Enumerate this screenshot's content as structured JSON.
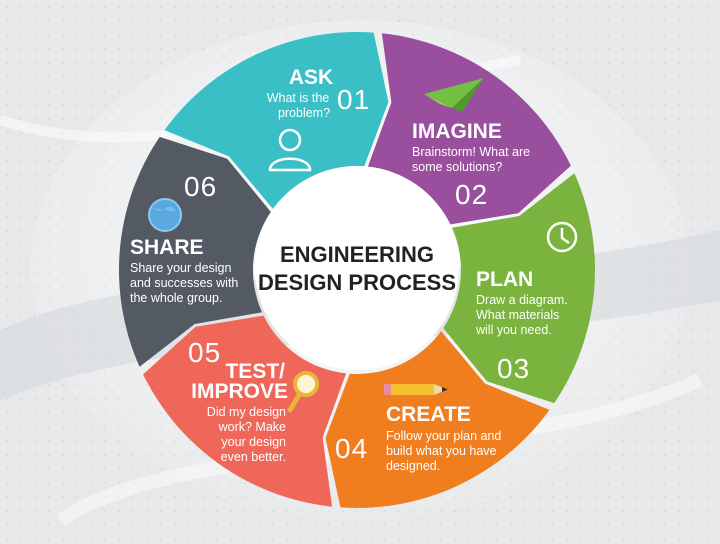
{
  "center": {
    "line1": "ENGINEERING",
    "line2": "DESIGN PROCESS"
  },
  "steps": [
    {
      "number": "01",
      "title": "ASK",
      "desc": [
        "What is the",
        "problem?"
      ],
      "color": "#3bbfc6",
      "icon": "person-icon"
    },
    {
      "number": "02",
      "title": "IMAGINE",
      "desc": [
        "Brainstorm! What are",
        "some solutions?"
      ],
      "color": "#9a4e9e",
      "icon": "paper-plane-icon"
    },
    {
      "number": "03",
      "title": "PLAN",
      "desc": [
        "Draw a diagram.",
        "What materials",
        "will you need."
      ],
      "color": "#7ab33d",
      "icon": "clock-icon"
    },
    {
      "number": "04",
      "title": "CREATE",
      "desc": [
        "Follow your plan and",
        "build what you have",
        "designed."
      ],
      "color": "#f07e1f",
      "icon": "pencil-icon"
    },
    {
      "number": "05",
      "title": [
        "TEST/",
        "IMPROVE"
      ],
      "desc": [
        "Did my design",
        "work? Make",
        "your design",
        "even better."
      ],
      "color": "#ee6758",
      "icon": "magnifier-icon"
    },
    {
      "number": "06",
      "title": "SHARE",
      "desc": [
        "Share your design",
        "and successes with",
        "the whole group."
      ],
      "color": "#535a63",
      "icon": "globe-icon"
    }
  ]
}
